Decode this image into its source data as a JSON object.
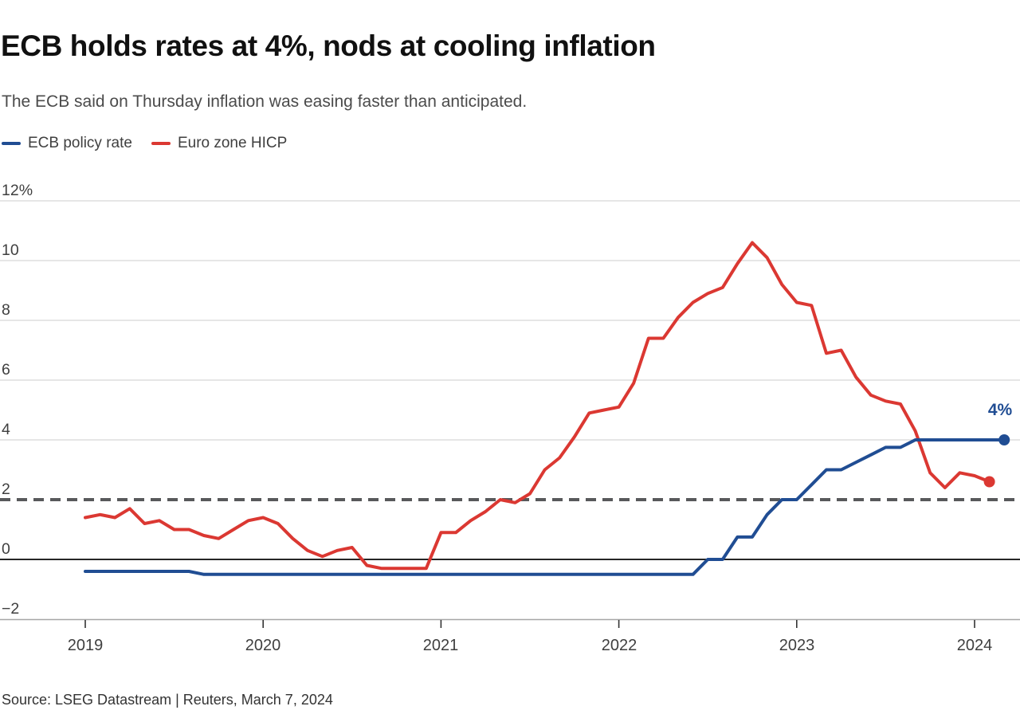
{
  "header": {
    "title": "ECB holds rates at 4%, nods at cooling inflation",
    "subtitle": "The ECB said on Thursday inflation was easing faster than anticipated."
  },
  "legend": {
    "items": [
      {
        "label": "ECB policy rate",
        "color": "#204D93"
      },
      {
        "label": "Euro zone HICP",
        "color": "#DB3832"
      }
    ]
  },
  "source": "Source: LSEG Datastream | Reuters, March 7, 2024",
  "colors": {
    "policy_blue": "#204D93",
    "hicp_red": "#DB3832",
    "gridline": "#CCCCCC",
    "zero_line": "#262626",
    "axis_line": "#A6A6A6",
    "tick_mark": "#333333",
    "target_dash": "#58595B",
    "axis_text": "#3F3F3F"
  },
  "chart_data": {
    "type": "line",
    "title": "ECB holds rates at 4%, nods at cooling inflation",
    "xlabel": "",
    "ylabel": "percent",
    "x_range": [
      "2019-01",
      "2024-03"
    ],
    "frequency": "monthly",
    "ylim": [
      -2,
      12
    ],
    "grid": "horizontal",
    "legend_position": "top-left",
    "x_ticks": [
      "2019",
      "2020",
      "2021",
      "2022",
      "2023",
      "2024"
    ],
    "y_ticks": [
      {
        "label": "12%",
        "value": 12,
        "style": "grid"
      },
      {
        "label": "10",
        "value": 10,
        "style": "grid"
      },
      {
        "label": "8",
        "value": 8,
        "style": "grid"
      },
      {
        "label": "6",
        "value": 6,
        "style": "grid"
      },
      {
        "label": "4",
        "value": 4,
        "style": "grid"
      },
      {
        "label": "2",
        "value": 2,
        "style": "dashed-target"
      },
      {
        "label": "0",
        "value": 0,
        "style": "zero"
      },
      {
        "label": "−2",
        "value": -2,
        "style": "axis"
      }
    ],
    "target_line": {
      "value": 2,
      "style": "dashed",
      "color": "#58595B"
    },
    "annotation": {
      "text": "4%",
      "value": 4,
      "x": "2024-03"
    },
    "series": [
      {
        "name": "ECB policy rate",
        "color": "#204D93",
        "start": "2019-01",
        "end": "2024-03",
        "end_dot": true,
        "values": [
          -0.4,
          -0.4,
          -0.4,
          -0.4,
          -0.4,
          -0.4,
          -0.4,
          -0.4,
          -0.5,
          -0.5,
          -0.5,
          -0.5,
          -0.5,
          -0.5,
          -0.5,
          -0.5,
          -0.5,
          -0.5,
          -0.5,
          -0.5,
          -0.5,
          -0.5,
          -0.5,
          -0.5,
          -0.5,
          -0.5,
          -0.5,
          -0.5,
          -0.5,
          -0.5,
          -0.5,
          -0.5,
          -0.5,
          -0.5,
          -0.5,
          -0.5,
          -0.5,
          -0.5,
          -0.5,
          -0.5,
          -0.5,
          -0.5,
          0,
          0,
          0.75,
          0.75,
          1.5,
          2,
          2,
          2.5,
          3,
          3,
          3.25,
          3.5,
          3.75,
          3.75,
          4,
          4,
          4,
          4,
          4,
          4,
          4
        ]
      },
      {
        "name": "Euro zone HICP",
        "color": "#DB3832",
        "start": "2019-01",
        "end": "2024-02",
        "end_dot": true,
        "values": [
          1.4,
          1.5,
          1.4,
          1.7,
          1.2,
          1.3,
          1.0,
          1.0,
          0.8,
          0.7,
          1.0,
          1.3,
          1.4,
          1.2,
          0.7,
          0.3,
          0.1,
          0.3,
          0.4,
          -0.2,
          -0.3,
          -0.3,
          -0.3,
          -0.3,
          0.9,
          0.9,
          1.3,
          1.6,
          2.0,
          1.9,
          2.2,
          3.0,
          3.4,
          4.1,
          4.9,
          5.0,
          5.1,
          5.9,
          7.4,
          7.4,
          8.1,
          8.6,
          8.9,
          9.1,
          9.9,
          10.6,
          10.1,
          9.2,
          8.6,
          8.5,
          6.9,
          7.0,
          6.1,
          5.5,
          5.3,
          5.2,
          4.3,
          2.9,
          2.4,
          2.9,
          2.8,
          2.6
        ]
      }
    ]
  }
}
